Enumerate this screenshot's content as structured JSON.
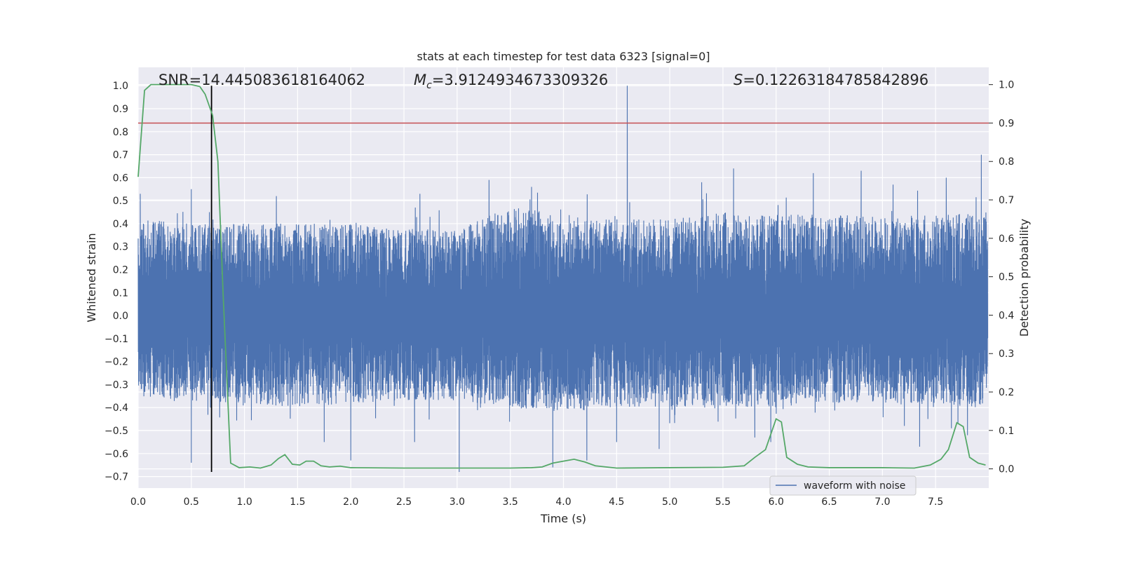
{
  "chart_data": {
    "type": "line",
    "title": "stats at each timestep for test data 6323 [signal=0]",
    "xlabel": "Time (s)",
    "ylabel": "Whitened strain",
    "y2label": "Detection probability",
    "xlim": [
      0.0,
      8.0
    ],
    "ylim": [
      -0.75,
      1.08
    ],
    "y2lim": [
      -0.05,
      1.045
    ],
    "x_ticks": [
      0.0,
      0.5,
      1.0,
      1.5,
      2.0,
      2.5,
      3.0,
      3.5,
      4.0,
      4.5,
      5.0,
      5.5,
      6.0,
      6.5,
      7.0,
      7.5
    ],
    "x_tick_labels": [
      "0.0",
      "0.5",
      "1.0",
      "1.5",
      "2.0",
      "2.5",
      "3.0",
      "3.5",
      "4.0",
      "4.5",
      "5.0",
      "5.5",
      "6.0",
      "6.5",
      "7.0",
      "7.5"
    ],
    "y_ticks": [
      -0.7,
      -0.6,
      -0.5,
      -0.4,
      -0.3,
      -0.2,
      -0.1,
      0.0,
      0.1,
      0.2,
      0.3,
      0.4,
      0.5,
      0.6,
      0.7,
      0.8,
      0.9,
      1.0
    ],
    "y_tick_labels": [
      "−0.7",
      "−0.6",
      "−0.5",
      "−0.4",
      "−0.3",
      "−0.2",
      "−0.1",
      "0.0",
      "0.1",
      "0.2",
      "0.3",
      "0.4",
      "0.5",
      "0.6",
      "0.7",
      "0.8",
      "0.9",
      "1.0"
    ],
    "y2_ticks": [
      0.0,
      0.1,
      0.2,
      0.3,
      0.4,
      0.5,
      0.6,
      0.7,
      0.8,
      0.9,
      1.0
    ],
    "y2_tick_labels": [
      "0.0",
      "0.1",
      "0.2",
      "0.3",
      "0.4",
      "0.5",
      "0.6",
      "0.7",
      "0.8",
      "0.9",
      "1.0"
    ],
    "grid": true,
    "legend": {
      "placement": "lower-right",
      "entries": [
        {
          "name": "waveform with noise",
          "color": "#4c72b0"
        }
      ]
    },
    "annotations": {
      "snr": "SNR=14.445083618164062",
      "mc_symbol": "M",
      "mc_sub": "c",
      "mc_value": "=3.9124934673309326",
      "s_symbol": "S",
      "s_value": "=0.12263184785842896"
    },
    "series": [
      {
        "name": "waveform with noise",
        "color": "#4c72b0",
        "kind": "dense-noise",
        "x_range": [
          0.0,
          7.99
        ],
        "noise_seed": 6323,
        "envelope_x": [
          0.0,
          0.5,
          1.0,
          1.5,
          2.0,
          2.5,
          3.0,
          3.5,
          4.0,
          4.5,
          5.0,
          5.5,
          6.0,
          6.5,
          7.0,
          7.5,
          7.99
        ],
        "envelope_upper": [
          0.42,
          0.4,
          0.4,
          0.4,
          0.4,
          0.38,
          0.37,
          0.48,
          0.44,
          0.42,
          0.42,
          0.45,
          0.44,
          0.44,
          0.43,
          0.44,
          0.45
        ],
        "envelope_lower": [
          -0.35,
          -0.37,
          -0.38,
          -0.4,
          -0.38,
          -0.37,
          -0.37,
          -0.4,
          -0.42,
          -0.4,
          -0.4,
          -0.4,
          -0.4,
          -0.38,
          -0.38,
          -0.4,
          -0.4
        ],
        "peaks": [
          {
            "x": 0.02,
            "y": 0.53
          },
          {
            "x": 0.5,
            "y": 0.55
          },
          {
            "x": 0.67,
            "y": 0.45
          },
          {
            "x": 1.3,
            "y": 0.52
          },
          {
            "x": 2.65,
            "y": 0.53
          },
          {
            "x": 3.3,
            "y": 0.59
          },
          {
            "x": 3.7,
            "y": 0.56
          },
          {
            "x": 4.6,
            "y": 1.0
          },
          {
            "x": 5.6,
            "y": 0.64
          },
          {
            "x": 5.3,
            "y": 0.58
          },
          {
            "x": 6.35,
            "y": 0.62
          },
          {
            "x": 6.8,
            "y": 0.63
          },
          {
            "x": 7.1,
            "y": 0.57
          },
          {
            "x": 7.6,
            "y": 0.6
          },
          {
            "x": 7.93,
            "y": 0.7
          }
        ],
        "troughs": [
          {
            "x": 0.5,
            "y": -0.64
          },
          {
            "x": 0.68,
            "y": -0.4
          },
          {
            "x": 1.75,
            "y": -0.55
          },
          {
            "x": 2.0,
            "y": -0.63
          },
          {
            "x": 2.6,
            "y": -0.55
          },
          {
            "x": 3.02,
            "y": -0.68
          },
          {
            "x": 3.9,
            "y": -0.66
          },
          {
            "x": 4.22,
            "y": -0.63
          },
          {
            "x": 4.5,
            "y": -0.55
          },
          {
            "x": 4.9,
            "y": -0.58
          },
          {
            "x": 5.8,
            "y": -0.53
          },
          {
            "x": 5.95,
            "y": -0.55
          },
          {
            "x": 7.35,
            "y": -0.57
          },
          {
            "x": 7.8,
            "y": -0.52
          }
        ]
      },
      {
        "name": "",
        "color": "#55a868",
        "axis": "right",
        "x": [
          0.0,
          0.06,
          0.12,
          0.2,
          0.3,
          0.4,
          0.5,
          0.58,
          0.63,
          0.7,
          0.75,
          0.8,
          0.87,
          0.95,
          1.05,
          1.15,
          1.25,
          1.32,
          1.38,
          1.45,
          1.52,
          1.58,
          1.65,
          1.72,
          1.8,
          1.9,
          2.0,
          2.5,
          3.0,
          3.5,
          3.7,
          3.8,
          3.9,
          4.0,
          4.1,
          4.2,
          4.3,
          4.5,
          5.0,
          5.5,
          5.7,
          5.8,
          5.9,
          6.0,
          6.05,
          6.1,
          6.2,
          6.3,
          6.5,
          7.0,
          7.3,
          7.45,
          7.55,
          7.62,
          7.7,
          7.76,
          7.82,
          7.9,
          7.97
        ],
        "y": [
          0.76,
          0.985,
          1.0,
          1.0,
          1.0,
          1.0,
          1.0,
          0.995,
          0.975,
          0.92,
          0.8,
          0.45,
          0.015,
          0.003,
          0.005,
          0.002,
          0.01,
          0.027,
          0.037,
          0.012,
          0.01,
          0.02,
          0.02,
          0.008,
          0.005,
          0.007,
          0.003,
          0.002,
          0.002,
          0.002,
          0.003,
          0.005,
          0.015,
          0.02,
          0.025,
          0.018,
          0.008,
          0.002,
          0.003,
          0.004,
          0.008,
          0.03,
          0.05,
          0.13,
          0.122,
          0.03,
          0.012,
          0.005,
          0.003,
          0.003,
          0.002,
          0.01,
          0.025,
          0.05,
          0.12,
          0.11,
          0.03,
          0.015,
          0.01
        ]
      }
    ],
    "threshold": {
      "axis": "right",
      "value": 0.9,
      "color": "#c44e52"
    },
    "vline": {
      "x": 0.69,
      "ymin": -0.68,
      "ymax": 1.0,
      "color": "#000000"
    }
  }
}
